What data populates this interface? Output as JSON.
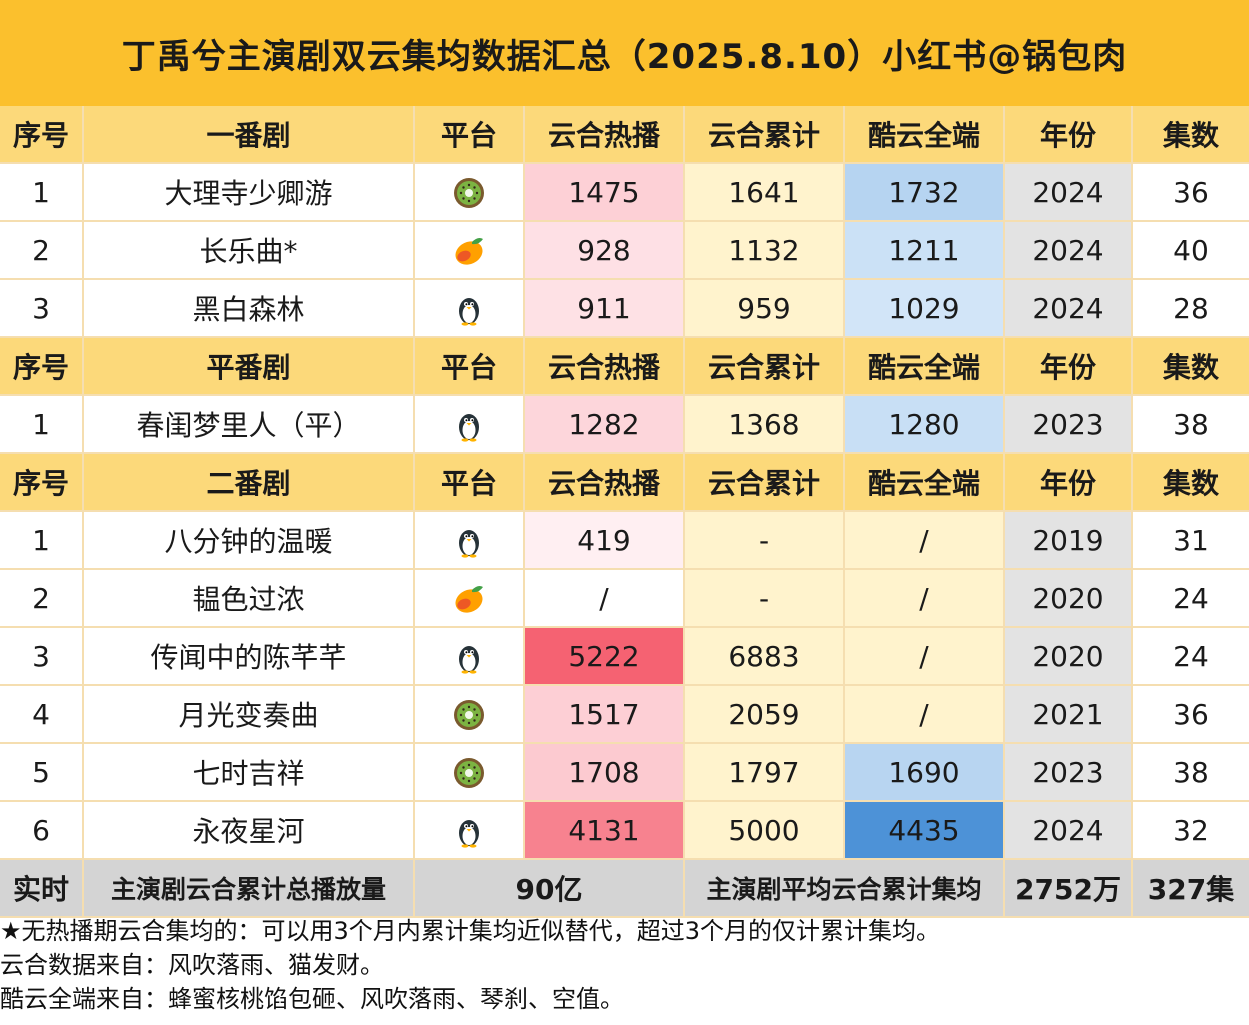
{
  "title": "丁禹兮主演剧双云集均数据汇总（2025.8.10）小红书@锅包肉",
  "header_labels": {
    "index": "序号",
    "platform": "平台",
    "hot": "云合热播",
    "cumulative": "云合累计",
    "kuyun": "酷云全端",
    "year": "年份",
    "episodes": "集数"
  },
  "sections": [
    {
      "name": "一番剧",
      "rows": [
        {
          "idx": "1",
          "name": "大理寺少卿游",
          "platform": "kiwi-icon",
          "hot": "1475",
          "cumulative": "1641",
          "kuyun": "1732",
          "year": "2024",
          "episodes": "36"
        },
        {
          "idx": "2",
          "name": "长乐曲*",
          "platform": "mango-icon",
          "hot": "928",
          "cumulative": "1132",
          "kuyun": "1211",
          "year": "2024",
          "episodes": "40"
        },
        {
          "idx": "3",
          "name": "黑白森林",
          "platform": "penguin-icon",
          "hot": "911",
          "cumulative": "959",
          "kuyun": "1029",
          "year": "2024",
          "episodes": "28"
        }
      ]
    },
    {
      "name": "平番剧",
      "rows": [
        {
          "idx": "1",
          "name": "春闺梦里人（平）",
          "platform": "penguin-icon",
          "hot": "1282",
          "cumulative": "1368",
          "kuyun": "1280",
          "year": "2023",
          "episodes": "38"
        }
      ]
    },
    {
      "name": "二番剧",
      "rows": [
        {
          "idx": "1",
          "name": "八分钟的温暖",
          "platform": "penguin-icon",
          "hot": "419",
          "cumulative": "-",
          "kuyun": "/",
          "year": "2019",
          "episodes": "31"
        },
        {
          "idx": "2",
          "name": "韫色过浓",
          "platform": "mango-icon",
          "hot": "/",
          "cumulative": "-",
          "kuyun": "/",
          "year": "2020",
          "episodes": "24"
        },
        {
          "idx": "3",
          "name": "传闻中的陈芊芊",
          "platform": "penguin-icon",
          "hot": "5222",
          "cumulative": "6883",
          "kuyun": "/",
          "year": "2020",
          "episodes": "24"
        },
        {
          "idx": "4",
          "name": "月光变奏曲",
          "platform": "kiwi-icon",
          "hot": "1517",
          "cumulative": "2059",
          "kuyun": "/",
          "year": "2021",
          "episodes": "36"
        },
        {
          "idx": "5",
          "name": "七时吉祥",
          "platform": "kiwi-icon",
          "hot": "1708",
          "cumulative": "1797",
          "kuyun": "1690",
          "year": "2023",
          "episodes": "38"
        },
        {
          "idx": "6",
          "name": "永夜星河",
          "platform": "penguin-icon",
          "hot": "4131",
          "cumulative": "5000",
          "kuyun": "4435",
          "year": "2024",
          "episodes": "32"
        }
      ]
    }
  ],
  "summary": {
    "label": "实时",
    "total_label": "主演剧云合累计总播放量",
    "total_value": "90亿",
    "avg_label": "主演剧平均云合累计集均",
    "avg_value": "2752万",
    "episodes_total": "327集"
  },
  "notes": [
    "★无热播期云合集均的：可以用3个月内累计集均近似替代，超过3个月的仅计累计集均。",
    "云合数据来自：风吹落雨、猫发财。",
    "酷云全端来自：蜂蜜核桃馅包砸、风吹落雨、琴刹、空值。"
  ],
  "colors": {
    "title_bg": "#fbc02d",
    "header_bg": "#fcd97a",
    "cumulative_bg": "#fff3cd",
    "year_bg": "#e3e3e3",
    "summary_bg": "#d4d4d4",
    "summary_value": "#c62828"
  }
}
